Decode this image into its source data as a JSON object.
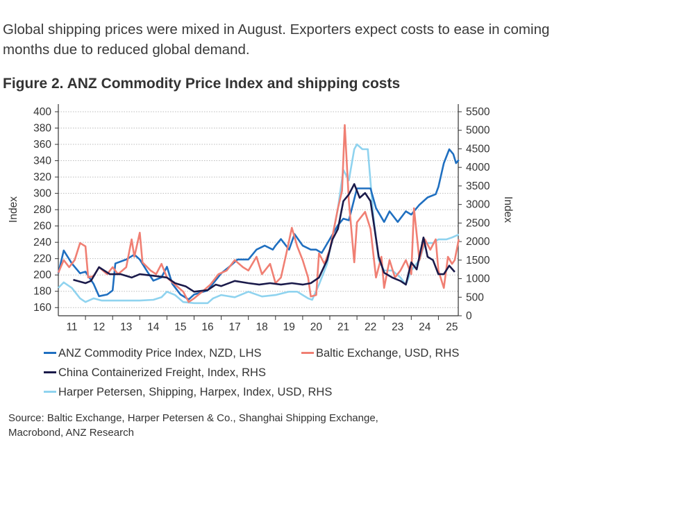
{
  "intro": {
    "line1": "Global shipping prices were mixed in August. Exporters expect costs to ease in coming",
    "line2": "months due to reduced global demand."
  },
  "figure_title": "Figure 2. ANZ Commodity Price Index and shipping costs",
  "source": {
    "line1": "Source: Baltic Exchange, Harper Petersen & Co., Shanghai Shipping Exchange,",
    "line2": "Macrobond, ANZ Research"
  },
  "chart_data": {
    "type": "line",
    "title": "Figure 2. ANZ Commodity Price Index and shipping costs",
    "ylabel_left": "Index",
    "ylabel_right": "Index",
    "ylim_left": [
      150,
      400
    ],
    "ylim_right": [
      0,
      5500
    ],
    "left_ticks": [
      "160",
      "180",
      "200",
      "220",
      "240",
      "260",
      "280",
      "300",
      "320",
      "340",
      "360",
      "380",
      "400"
    ],
    "right_ticks": [
      "0",
      "500",
      "1000",
      "1500",
      "2000",
      "2500",
      "3000",
      "3500",
      "4000",
      "4500",
      "5000",
      "5500"
    ],
    "x_ticks": [
      "11",
      "12",
      "13",
      "14",
      "15",
      "16",
      "17",
      "18",
      "19",
      "20",
      "21",
      "22",
      "23",
      "24",
      "25"
    ],
    "xlim": [
      2011.0,
      2025.75
    ],
    "grid": true,
    "legend_position": "bottom",
    "series": [
      {
        "name": "ANZ Commodity Price Index, NZD, LHS",
        "axis": "left",
        "color": "#1f6fc0",
        "x": [
          2011.0,
          2011.2,
          2011.5,
          2011.8,
          2012.0,
          2012.3,
          2012.5,
          2012.8,
          2013.0,
          2013.1,
          2013.5,
          2013.8,
          2014.0,
          2014.3,
          2014.5,
          2014.8,
          2015.0,
          2015.2,
          2015.5,
          2015.8,
          2016.0,
          2016.5,
          2017.0,
          2017.3,
          2017.6,
          2018.0,
          2018.3,
          2018.6,
          2018.9,
          2019.0,
          2019.2,
          2019.5,
          2019.7,
          2020.0,
          2020.3,
          2020.5,
          2020.7,
          2021.0,
          2021.3,
          2021.5,
          2021.7,
          2022.0,
          2022.3,
          2022.5,
          2022.7,
          2023.0,
          2023.2,
          2023.5,
          2023.8,
          2024.0,
          2024.3,
          2024.6,
          2024.9,
          2025.0,
          2025.2,
          2025.4,
          2025.55,
          2025.65,
          2025.75
        ],
        "y": [
          202,
          230,
          214,
          202,
          204,
          189,
          174,
          176,
          181,
          214,
          219,
          225,
          219,
          203,
          193,
          197,
          210,
          189,
          176,
          170,
          176,
          181,
          202,
          210,
          219,
          219,
          231,
          236,
          231,
          236,
          244,
          231,
          250,
          236,
          231,
          231,
          227,
          244,
          261,
          269,
          267,
          306,
          306,
          306,
          282,
          265,
          278,
          265,
          278,
          274,
          286,
          295,
          299,
          308,
          337,
          354,
          348,
          337,
          341
        ]
      },
      {
        "name": "Baltic Exchange, USD, RHS",
        "axis": "right",
        "color": "#f07f73",
        "x": [
          2011.0,
          2011.2,
          2011.4,
          2011.6,
          2011.8,
          2012.0,
          2012.1,
          2012.3,
          2012.5,
          2012.8,
          2013.0,
          2013.2,
          2013.5,
          2013.7,
          2013.8,
          2014.0,
          2014.1,
          2014.4,
          2014.6,
          2014.8,
          2015.0,
          2015.3,
          2015.6,
          2015.8,
          2016.0,
          2016.3,
          2016.6,
          2016.9,
          2017.2,
          2017.5,
          2017.8,
          2018.0,
          2018.3,
          2018.5,
          2018.8,
          2019.0,
          2019.2,
          2019.4,
          2019.6,
          2019.8,
          2020.0,
          2020.2,
          2020.3,
          2020.5,
          2020.6,
          2020.8,
          2021.0,
          2021.2,
          2021.3,
          2021.45,
          2021.55,
          2021.7,
          2021.9,
          2022.0,
          2022.3,
          2022.5,
          2022.7,
          2022.9,
          2023.0,
          2023.2,
          2023.4,
          2023.6,
          2023.8,
          2024.0,
          2024.1,
          2024.3,
          2024.5,
          2024.7,
          2024.9,
          2025.0,
          2025.2,
          2025.35,
          2025.5,
          2025.6,
          2025.75
        ],
        "y": [
          1160,
          1500,
          1310,
          1500,
          1960,
          1870,
          1030,
          1070,
          1310,
          1120,
          1310,
          1120,
          1310,
          2060,
          1590,
          2240,
          1440,
          1220,
          1120,
          1400,
          1030,
          840,
          650,
          370,
          470,
          650,
          840,
          1120,
          1220,
          1500,
          1310,
          1220,
          1590,
          1120,
          1400,
          880,
          1030,
          1680,
          2370,
          1870,
          1500,
          1030,
          520,
          560,
          1680,
          1400,
          1780,
          2520,
          2900,
          3370,
          5140,
          3090,
          1440,
          2520,
          2800,
          2340,
          1030,
          1590,
          750,
          1500,
          1030,
          1220,
          1500,
          1120,
          2900,
          1500,
          2060,
          1780,
          2060,
          1220,
          750,
          1590,
          1400,
          1500,
          2060
        ]
      },
      {
        "name": "China Containerized Freight, Index, RHS",
        "axis": "right",
        "color": "#1a1a4a",
        "x": [
          2011.55,
          2012.0,
          2012.2,
          2012.5,
          2012.9,
          2013.3,
          2013.7,
          2014.0,
          2014.5,
          2015.0,
          2015.3,
          2015.7,
          2016.0,
          2016.5,
          2016.8,
          2017.0,
          2017.5,
          2018.0,
          2018.4,
          2018.8,
          2019.2,
          2019.6,
          2020.0,
          2020.3,
          2020.6,
          2020.9,
          2021.1,
          2021.3,
          2021.5,
          2021.7,
          2021.9,
          2022.1,
          2022.3,
          2022.5,
          2022.65,
          2022.8,
          2023.0,
          2023.3,
          2023.6,
          2023.8,
          2024.0,
          2024.2,
          2024.45,
          2024.6,
          2024.8,
          2025.0,
          2025.2,
          2025.4,
          2025.6
        ],
        "y": [
          970,
          880,
          940,
          1310,
          1120,
          1120,
          1030,
          1120,
          1080,
          1030,
          880,
          790,
          650,
          690,
          840,
          800,
          940,
          880,
          840,
          880,
          840,
          880,
          840,
          880,
          1030,
          1500,
          2060,
          2340,
          3090,
          3270,
          3550,
          3180,
          3310,
          3090,
          2340,
          1590,
          1160,
          1030,
          940,
          840,
          1440,
          1250,
          2110,
          1590,
          1500,
          1120,
          1120,
          1350,
          1180
        ]
      },
      {
        "name": "Harper Petersen, Shipping, Harpex, Index, USD, RHS",
        "axis": "right",
        "color": "#8fd3ef",
        "x": [
          2011.0,
          2011.2,
          2011.5,
          2011.8,
          2012.0,
          2012.3,
          2012.6,
          2013.0,
          2013.5,
          2014.0,
          2014.5,
          2014.8,
          2015.0,
          2015.3,
          2015.6,
          2016.0,
          2016.5,
          2016.7,
          2017.0,
          2017.5,
          2018.0,
          2018.5,
          2019.0,
          2019.5,
          2019.8,
          2020.0,
          2020.2,
          2020.35,
          2020.6,
          2020.9,
          2021.1,
          2021.3,
          2021.5,
          2021.7,
          2021.9,
          2022.0,
          2022.2,
          2022.4,
          2022.6,
          2022.8,
          2023.0,
          2023.3,
          2023.6,
          2023.8,
          2024.0,
          2024.3,
          2024.5,
          2024.8,
          2025.0,
          2025.3,
          2025.5,
          2025.75
        ],
        "y": [
          750,
          900,
          750,
          470,
          370,
          470,
          410,
          410,
          410,
          410,
          430,
          500,
          650,
          560,
          370,
          340,
          340,
          470,
          560,
          500,
          650,
          520,
          560,
          650,
          650,
          560,
          470,
          430,
          840,
          1400,
          2150,
          2900,
          3930,
          3650,
          4490,
          4620,
          4490,
          4490,
          2710,
          1500,
          1220,
          1220,
          1030,
          840,
          1220,
          1500,
          1960,
          1960,
          2060,
          2060,
          2110,
          2190
        ]
      }
    ]
  }
}
